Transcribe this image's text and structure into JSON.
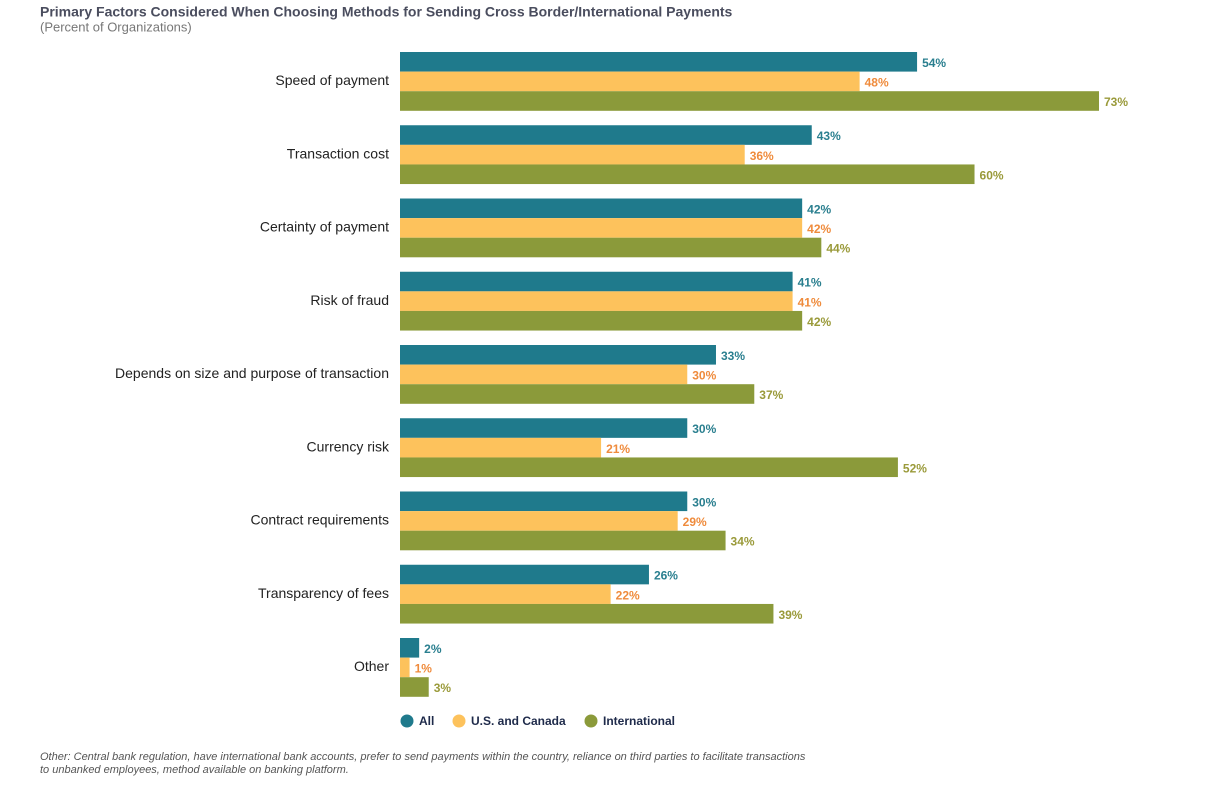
{
  "chart_data": {
    "type": "bar",
    "orientation": "horizontal",
    "title": "Primary Factors Considered When Choosing Methods for Sending Cross Border/International Payments",
    "subtitle": "(Percent of Organizations)",
    "categories": [
      "Speed of payment",
      "Transaction cost",
      "Certainty of payment",
      "Risk of fraud",
      "Depends on size and purpose of transaction",
      "Currency risk",
      "Contract requirements",
      "Transparency of fees",
      "Other"
    ],
    "series": [
      {
        "name": "All",
        "color": "#1f7a8c",
        "label_color": "#2a7f8f",
        "values": [
          54,
          43,
          42,
          41,
          33,
          30,
          30,
          26,
          2
        ],
        "value_labels": [
          "54%",
          "43%",
          "42%",
          "41%",
          "33%",
          "30%",
          "30%",
          "26%",
          "2%"
        ]
      },
      {
        "name": "U.S. and Canada",
        "color": "#fdc25c",
        "label_color": "#ef8b3c",
        "values": [
          48,
          36,
          42,
          41,
          30,
          21,
          29,
          22,
          1
        ],
        "value_labels": [
          "48%",
          "36%",
          "42%",
          "41%",
          "30%",
          "21%",
          "29%",
          "22%",
          "1%"
        ]
      },
      {
        "name": "International",
        "color": "#8b9a3a",
        "label_color": "#9a9a3a",
        "values": [
          73,
          60,
          44,
          42,
          37,
          52,
          34,
          39,
          3
        ],
        "value_labels": [
          "73%",
          "60%",
          "44%",
          "42%",
          "37%",
          "52%",
          "34%",
          "39%",
          "3%"
        ]
      }
    ],
    "note": [
      "Other: Central bank regulation, have international bank accounts, prefer to send payments within the country, reliance on third parties to facilitate transactions",
      "to unbanked employees, method available on banking platform."
    ]
  }
}
